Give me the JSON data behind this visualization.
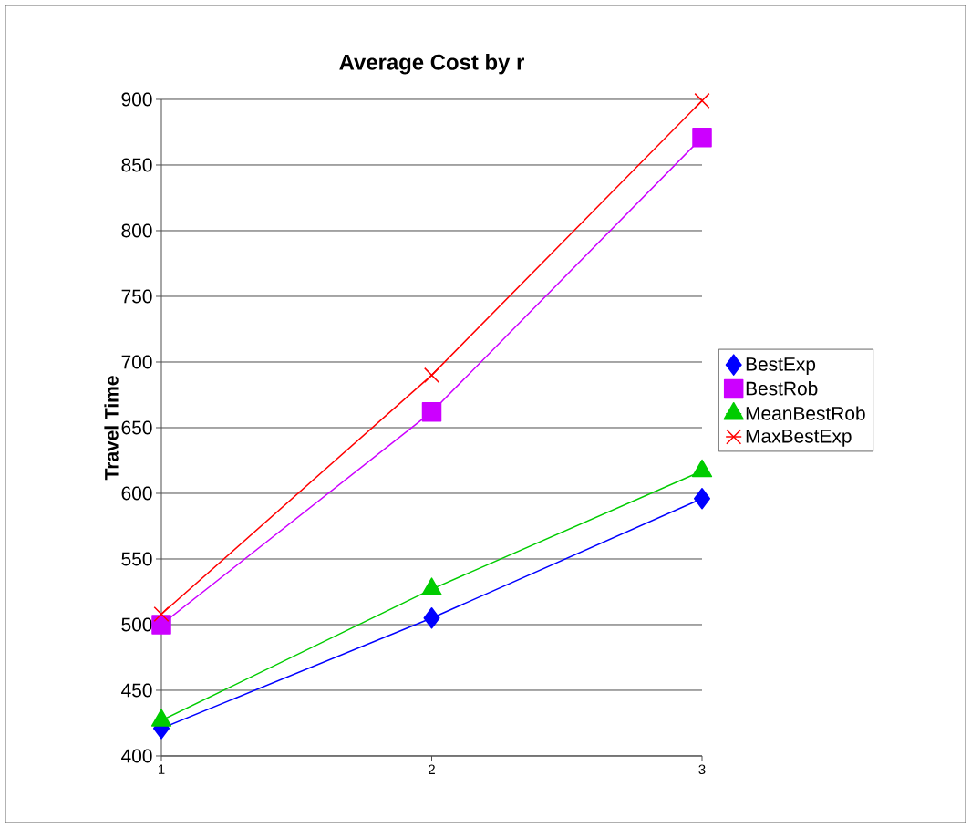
{
  "chart_data": {
    "type": "line",
    "title": "Average Cost by r",
    "ylabel": "Travel Time",
    "categories": [
      "1",
      "2",
      "3"
    ],
    "series": [
      {
        "name": "BestExp",
        "color": "#0000ff",
        "marker": "diamond",
        "values": [
          421,
          505,
          596
        ]
      },
      {
        "name": "BestRob",
        "color": "#cc00ff",
        "marker": "square",
        "values": [
          500,
          662,
          871
        ]
      },
      {
        "name": "MeanBestRob",
        "color": "#00cc00",
        "marker": "triangle",
        "values": [
          427,
          527,
          617
        ]
      },
      {
        "name": "MaxBestExp",
        "color": "#ff0000",
        "marker": "cross",
        "values": [
          508,
          690,
          899
        ]
      }
    ],
    "ylim": [
      400,
      900
    ],
    "yticks": [
      400,
      450,
      500,
      550,
      600,
      650,
      700,
      750,
      800,
      850,
      900
    ],
    "grid": "y",
    "legend": "right",
    "line_style": "solid"
  }
}
